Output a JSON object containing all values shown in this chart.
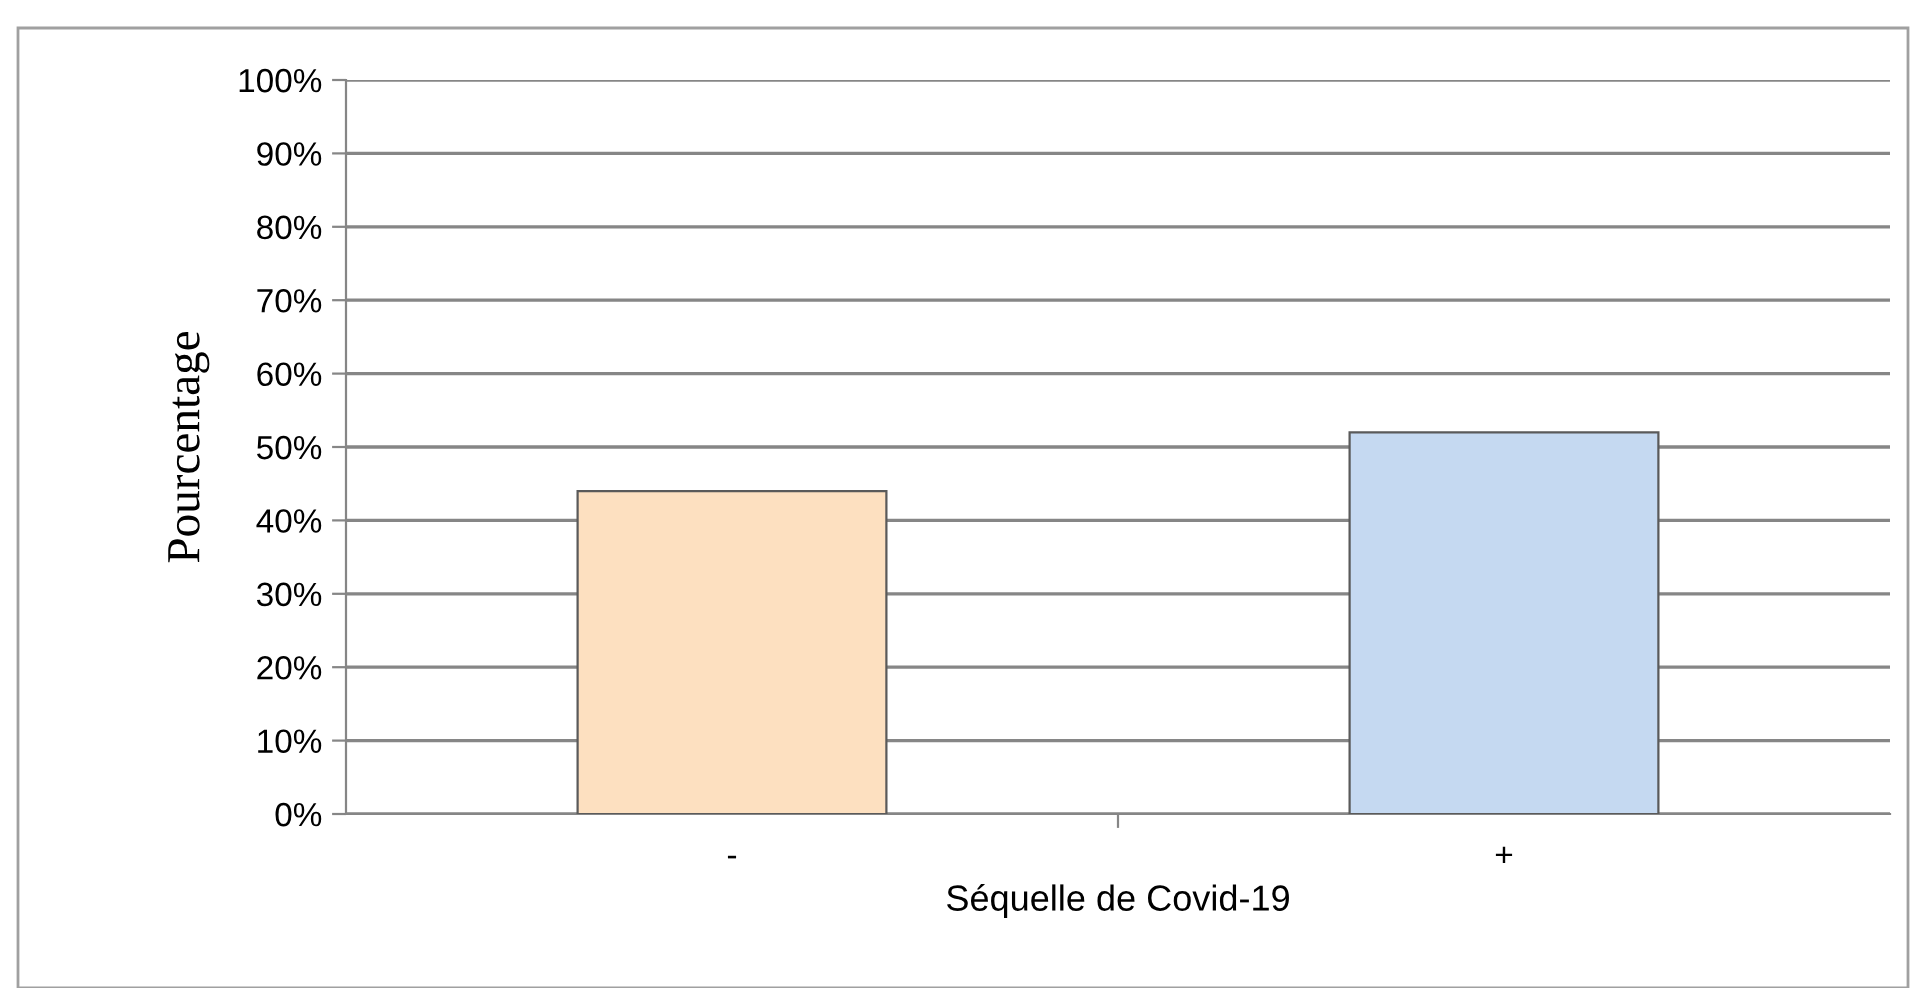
{
  "chart_data": {
    "type": "bar",
    "xlabel": "Séquelle de Covid-19",
    "ylabel": "Pourcentage",
    "categories": [
      "-",
      "+"
    ],
    "values": [
      44,
      52
    ],
    "colors": [
      "#fde0c0",
      "#c5d9f1"
    ],
    "ylim": [
      0,
      100
    ],
    "yticks": [
      {
        "value": 0,
        "label": "0%"
      },
      {
        "value": 10,
        "label": "10%"
      },
      {
        "value": 20,
        "label": "20%"
      },
      {
        "value": 30,
        "label": "30%"
      },
      {
        "value": 40,
        "label": "40%"
      },
      {
        "value": 50,
        "label": "50%"
      },
      {
        "value": 60,
        "label": "60%"
      },
      {
        "value": 70,
        "label": "70%"
      },
      {
        "value": 80,
        "label": "80%"
      },
      {
        "value": 90,
        "label": "90%"
      },
      {
        "value": 100,
        "label": "100%"
      }
    ],
    "grid": "y",
    "legend": false
  }
}
